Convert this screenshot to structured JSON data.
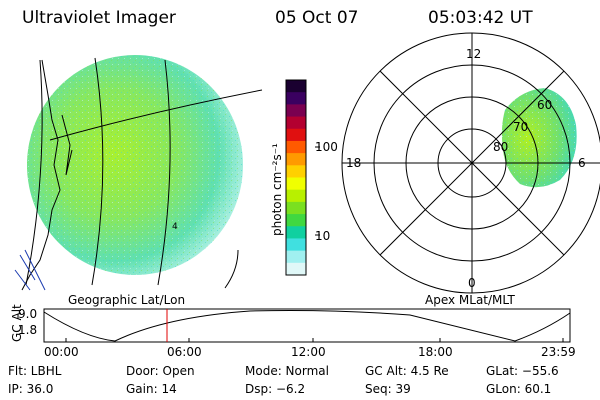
{
  "header": {
    "instrument": "Ultraviolet Imager",
    "date": "05 Oct 07",
    "time": "05:03:42 UT"
  },
  "colorbar": {
    "unit_label": "photon cm⁻²s⁻¹",
    "ticks": [
      "100",
      "10"
    ],
    "colors": [
      "#1a0030",
      "#3a0060",
      "#7a0050",
      "#b30030",
      "#e01010",
      "#ff5a00",
      "#ff9a00",
      "#ffd000",
      "#f0ff00",
      "#b8f000",
      "#7ae020",
      "#40d840",
      "#10d0a0",
      "#40e0e0",
      "#a0f0f0",
      "#e0f8f8"
    ]
  },
  "geo_panel": {
    "label": "Geographic Lat/Lon",
    "image_color": "#9ef03a",
    "label_mark": "4"
  },
  "polar_panel": {
    "label": "Apex MLat/MLT",
    "mlt_labels": [
      "12",
      "18",
      "6",
      "0"
    ],
    "lat_labels": [
      "80",
      "70",
      "60"
    ],
    "image_color": "#9ef03a"
  },
  "altitude_plot": {
    "ylabel": "GC Alt",
    "ytick_top": "9.0",
    "ytick_bottom": "1.8",
    "current_time_marker": "05:03",
    "xticks": [
      "00:00",
      "06:00",
      "12:00",
      "18:00",
      "23:59"
    ]
  },
  "status": {
    "flt": "Flt: LBHL",
    "door": "Door: Open",
    "mode": "Mode: Normal",
    "gc_alt": "GC Alt: 4.5 Re",
    "glat": "GLat: −55.6",
    "ip": "IP: 36.0",
    "gain": "Gain: 14",
    "dsp": "Dsp:    −6.2",
    "seq": "Seq: 39",
    "glon": "GLon:  60.1"
  }
}
